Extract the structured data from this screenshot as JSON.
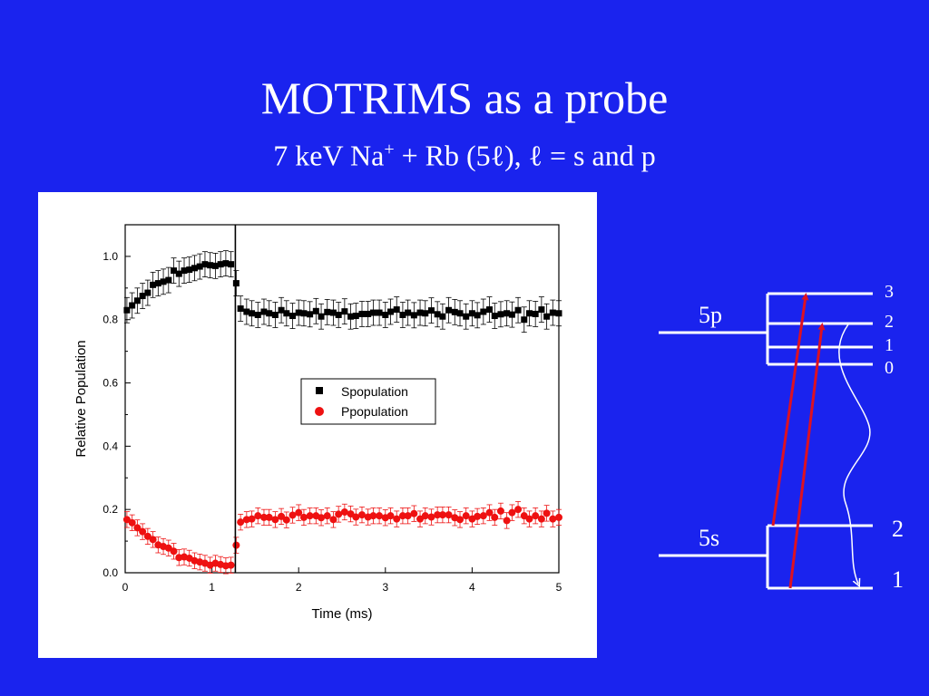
{
  "slide": {
    "title": "MOTRIMS as a probe",
    "subtitle_main": "7 keV Na",
    "subtitle_sup": "+",
    "subtitle_rest": " + Rb (5ℓ), ℓ = s and p"
  },
  "colors": {
    "background": "#1a23ee",
    "s_series": "#000000",
    "p_series": "#ee1111",
    "arrow": "#dd1122"
  },
  "chart_data": {
    "type": "scatter",
    "xlabel": "Time (ms)",
    "ylabel": "Relative Population",
    "xlim": [
      0,
      5
    ],
    "ylim": [
      0,
      1.1
    ],
    "xticks": [
      0,
      1,
      2,
      3,
      4,
      5
    ],
    "yticks": [
      "0.0",
      "0.2",
      "0.4",
      "0.6",
      "0.8",
      "1.0"
    ],
    "marker_line_x": 1.27,
    "legend_position": "center",
    "series": [
      {
        "name": "Spopulation",
        "marker": "square",
        "error": 0.04,
        "points": [
          [
            0.02,
            0.83
          ],
          [
            0.08,
            0.845
          ],
          [
            0.14,
            0.86
          ],
          [
            0.2,
            0.875
          ],
          [
            0.26,
            0.885
          ],
          [
            0.32,
            0.91
          ],
          [
            0.38,
            0.915
          ],
          [
            0.44,
            0.92
          ],
          [
            0.5,
            0.925
          ],
          [
            0.56,
            0.955
          ],
          [
            0.62,
            0.945
          ],
          [
            0.68,
            0.955
          ],
          [
            0.74,
            0.958
          ],
          [
            0.8,
            0.963
          ],
          [
            0.86,
            0.968
          ],
          [
            0.92,
            0.975
          ],
          [
            0.98,
            0.972
          ],
          [
            1.04,
            0.97
          ],
          [
            1.1,
            0.975
          ],
          [
            1.16,
            0.978
          ],
          [
            1.22,
            0.975
          ],
          [
            1.28,
            0.915
          ],
          [
            1.33,
            0.835
          ],
          [
            1.4,
            0.825
          ],
          [
            1.46,
            0.82
          ],
          [
            1.53,
            0.815
          ],
          [
            1.6,
            0.825
          ],
          [
            1.66,
            0.82
          ],
          [
            1.73,
            0.815
          ],
          [
            1.8,
            0.83
          ],
          [
            1.86,
            0.82
          ],
          [
            1.93,
            0.812
          ],
          [
            2.0,
            0.822
          ],
          [
            2.06,
            0.82
          ],
          [
            2.13,
            0.817
          ],
          [
            2.2,
            0.827
          ],
          [
            2.26,
            0.81
          ],
          [
            2.33,
            0.824
          ],
          [
            2.4,
            0.822
          ],
          [
            2.46,
            0.815
          ],
          [
            2.53,
            0.826
          ],
          [
            2.6,
            0.81
          ],
          [
            2.66,
            0.812
          ],
          [
            2.73,
            0.818
          ],
          [
            2.8,
            0.818
          ],
          [
            2.86,
            0.822
          ],
          [
            2.93,
            0.822
          ],
          [
            3.0,
            0.815
          ],
          [
            3.06,
            0.825
          ],
          [
            3.13,
            0.832
          ],
          [
            3.2,
            0.815
          ],
          [
            3.26,
            0.822
          ],
          [
            3.33,
            0.814
          ],
          [
            3.4,
            0.822
          ],
          [
            3.46,
            0.82
          ],
          [
            3.53,
            0.829
          ],
          [
            3.6,
            0.817
          ],
          [
            3.66,
            0.81
          ],
          [
            3.73,
            0.83
          ],
          [
            3.8,
            0.824
          ],
          [
            3.86,
            0.82
          ],
          [
            3.93,
            0.81
          ],
          [
            4.0,
            0.82
          ],
          [
            4.06,
            0.814
          ],
          [
            4.13,
            0.825
          ],
          [
            4.2,
            0.832
          ],
          [
            4.26,
            0.812
          ],
          [
            4.33,
            0.817
          ],
          [
            4.4,
            0.82
          ],
          [
            4.46,
            0.816
          ],
          [
            4.53,
            0.83
          ],
          [
            4.6,
            0.8
          ],
          [
            4.66,
            0.82
          ],
          [
            4.73,
            0.818
          ],
          [
            4.8,
            0.832
          ],
          [
            4.86,
            0.81
          ],
          [
            4.93,
            0.822
          ],
          [
            5.0,
            0.82
          ]
        ]
      },
      {
        "name": "Ppopulation",
        "marker": "circle",
        "error": 0.025,
        "points": [
          [
            0.02,
            0.168
          ],
          [
            0.08,
            0.158
          ],
          [
            0.14,
            0.142
          ],
          [
            0.2,
            0.13
          ],
          [
            0.26,
            0.115
          ],
          [
            0.32,
            0.105
          ],
          [
            0.38,
            0.088
          ],
          [
            0.44,
            0.083
          ],
          [
            0.5,
            0.078
          ],
          [
            0.56,
            0.068
          ],
          [
            0.62,
            0.048
          ],
          [
            0.68,
            0.05
          ],
          [
            0.74,
            0.046
          ],
          [
            0.8,
            0.038
          ],
          [
            0.86,
            0.034
          ],
          [
            0.92,
            0.03
          ],
          [
            0.98,
            0.024
          ],
          [
            1.04,
            0.03
          ],
          [
            1.1,
            0.026
          ],
          [
            1.16,
            0.022
          ],
          [
            1.22,
            0.024
          ],
          [
            1.28,
            0.087
          ],
          [
            1.33,
            0.16
          ],
          [
            1.4,
            0.168
          ],
          [
            1.46,
            0.17
          ],
          [
            1.53,
            0.18
          ],
          [
            1.6,
            0.175
          ],
          [
            1.66,
            0.175
          ],
          [
            1.73,
            0.168
          ],
          [
            1.8,
            0.178
          ],
          [
            1.86,
            0.167
          ],
          [
            1.93,
            0.182
          ],
          [
            2.0,
            0.19
          ],
          [
            2.06,
            0.175
          ],
          [
            2.13,
            0.18
          ],
          [
            2.2,
            0.18
          ],
          [
            2.26,
            0.174
          ],
          [
            2.33,
            0.18
          ],
          [
            2.4,
            0.168
          ],
          [
            2.46,
            0.185
          ],
          [
            2.53,
            0.192
          ],
          [
            2.6,
            0.186
          ],
          [
            2.66,
            0.176
          ],
          [
            2.73,
            0.183
          ],
          [
            2.8,
            0.176
          ],
          [
            2.86,
            0.18
          ],
          [
            2.93,
            0.18
          ],
          [
            3.0,
            0.174
          ],
          [
            3.06,
            0.18
          ],
          [
            3.13,
            0.17
          ],
          [
            3.2,
            0.18
          ],
          [
            3.26,
            0.18
          ],
          [
            3.33,
            0.187
          ],
          [
            3.4,
            0.17
          ],
          [
            3.46,
            0.18
          ],
          [
            3.53,
            0.176
          ],
          [
            3.6,
            0.183
          ],
          [
            3.66,
            0.183
          ],
          [
            3.73,
            0.183
          ],
          [
            3.8,
            0.174
          ],
          [
            3.86,
            0.168
          ],
          [
            3.93,
            0.18
          ],
          [
            4.0,
            0.17
          ],
          [
            4.06,
            0.178
          ],
          [
            4.13,
            0.18
          ],
          [
            4.2,
            0.19
          ],
          [
            4.26,
            0.175
          ],
          [
            4.33,
            0.195
          ],
          [
            4.4,
            0.165
          ],
          [
            4.46,
            0.19
          ],
          [
            4.53,
            0.2
          ],
          [
            4.6,
            0.18
          ],
          [
            4.66,
            0.17
          ],
          [
            4.73,
            0.18
          ],
          [
            4.8,
            0.17
          ],
          [
            4.86,
            0.188
          ],
          [
            4.93,
            0.17
          ],
          [
            5.0,
            0.175
          ]
        ]
      }
    ]
  },
  "diagram": {
    "upper_state": "5p",
    "lower_state": "5s",
    "upper_levels": [
      "3",
      "2",
      "1",
      "0"
    ],
    "lower_levels": [
      "2",
      "1"
    ]
  }
}
